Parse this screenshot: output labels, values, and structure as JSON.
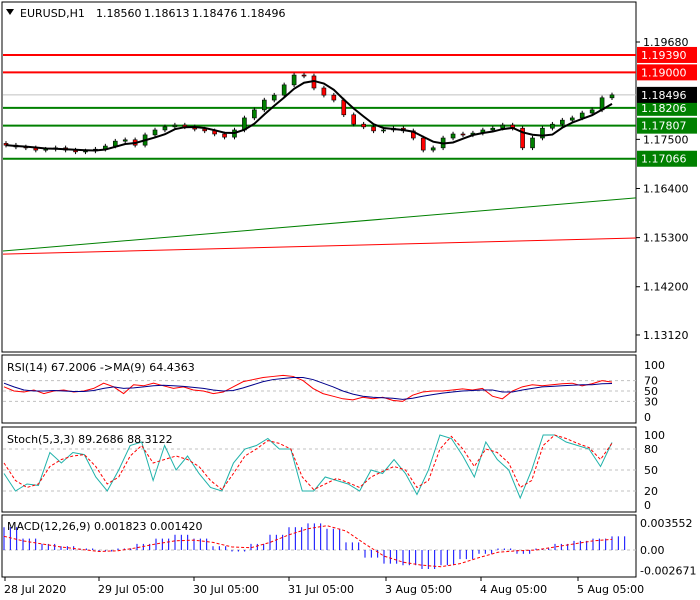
{
  "header": {
    "symbol": "EURUSD,H1",
    "open": "1.18560",
    "high": "1.18613",
    "low": "1.18476",
    "close": "1.18496"
  },
  "colors": {
    "bull": "#008000",
    "bear": "#ff0000",
    "resistance": "#ff0000",
    "support": "#008000",
    "current": "#000000",
    "ma": "#000000",
    "rsi": "#ff0000",
    "rsi_ma": "#00008b",
    "stoch_main": "#20b2aa",
    "stoch_signal": "#ff0000",
    "macd_hist": "#0000ff",
    "macd_signal": "#ff0000"
  },
  "chart_data": [
    {
      "type": "candlestick",
      "title": "EURUSD,H1",
      "price_axis_ticks": [
        "1.19680",
        "1.17500",
        "1.16400",
        "1.15300",
        "1.14200",
        "1.13120"
      ],
      "ylim": [
        1.1285,
        1.201
      ],
      "time_labels": [
        "28 Jul 2020",
        "29 Jul 05:00",
        "30 Jul 05:00",
        "31 Jul 05:00",
        "3 Aug 05:00",
        "4 Aug 05:00",
        "5 Aug 05:00"
      ],
      "closes": [
        1.1737,
        1.1733,
        1.1731,
        1.1726,
        1.1728,
        1.1731,
        1.1726,
        1.1722,
        1.1724,
        1.1728,
        1.1735,
        1.1746,
        1.1749,
        1.1737,
        1.176,
        1.1771,
        1.1778,
        1.1782,
        1.1778,
        1.1773,
        1.1769,
        1.1762,
        1.1755,
        1.1771,
        1.1798,
        1.1816,
        1.1838,
        1.1849,
        1.1872,
        1.1894,
        1.1892,
        1.1865,
        1.1849,
        1.1838,
        1.1805,
        1.1784,
        1.1778,
        1.1769,
        1.1771,
        1.1775,
        1.1769,
        1.1753,
        1.1726,
        1.1731,
        1.1753,
        1.1762,
        1.176,
        1.1764,
        1.1771,
        1.1775,
        1.1782,
        1.1775,
        1.1731,
        1.1753,
        1.1775,
        1.1784,
        1.1793,
        1.1798,
        1.1809,
        1.1816,
        1.1843,
        1.18496
      ],
      "levels": [
        {
          "price": "1.19390",
          "kind": "resistance"
        },
        {
          "price": "1.19000",
          "kind": "resistance"
        },
        {
          "price": "1.18206",
          "kind": "support"
        },
        {
          "price": "1.17807",
          "kind": "support"
        },
        {
          "price": "1.17066",
          "kind": "support"
        }
      ],
      "current_price": "1.18496",
      "trendlines": [
        {
          "kind": "support",
          "start_price": 1.15,
          "end_price": 1.1619
        },
        {
          "kind": "resistance",
          "start_price": 1.1493,
          "end_price": 1.1529
        }
      ]
    },
    {
      "type": "line",
      "label": "RSI(14) 67.2006  ->MA(9) 64.4363",
      "ticks": [
        "100",
        "70",
        "50",
        "30",
        "0"
      ],
      "ylim": [
        0,
        100
      ],
      "rsi": [
        58,
        50,
        48,
        52,
        45,
        50,
        52,
        48,
        50,
        55,
        65,
        58,
        45,
        62,
        60,
        65,
        60,
        55,
        58,
        52,
        50,
        45,
        48,
        58,
        68,
        72,
        76,
        78,
        80,
        78,
        70,
        55,
        45,
        40,
        35,
        33,
        38,
        35,
        38,
        32,
        30,
        42,
        48,
        50,
        50,
        52,
        54,
        52,
        55,
        40,
        35,
        50,
        58,
        62,
        60,
        62,
        64,
        65,
        60,
        64,
        70,
        67
      ],
      "rsi_ma": [
        65,
        58,
        52,
        50,
        50,
        51,
        50,
        49,
        49,
        51,
        55,
        58,
        55,
        56,
        58,
        60,
        61,
        60,
        59,
        57,
        55,
        52,
        50,
        51,
        56,
        62,
        68,
        72,
        74,
        76,
        76,
        72,
        65,
        58,
        50,
        44,
        40,
        38,
        37,
        36,
        34,
        36,
        40,
        43,
        46,
        48,
        50,
        51,
        52,
        52,
        48,
        48,
        52,
        55,
        58,
        59,
        60,
        61,
        62,
        62,
        64,
        64.4
      ]
    },
    {
      "type": "line",
      "label": "Stoch(5,3,3) 89.2686 88.3122",
      "ticks": [
        "100",
        "80",
        "50",
        "20",
        "0"
      ],
      "ylim": [
        0,
        100
      ],
      "main": [
        45,
        20,
        30,
        28,
        75,
        60,
        75,
        72,
        40,
        20,
        50,
        85,
        90,
        35,
        85,
        50,
        70,
        45,
        25,
        20,
        60,
        80,
        85,
        95,
        80,
        80,
        20,
        20,
        40,
        35,
        30,
        20,
        50,
        45,
        65,
        45,
        15,
        50,
        100,
        95,
        70,
        40,
        90,
        65,
        50,
        10,
        50,
        100,
        100,
        90,
        85,
        80,
        55,
        89.3
      ],
      "signal": [
        60,
        35,
        25,
        30,
        55,
        65,
        70,
        72,
        55,
        30,
        40,
        70,
        85,
        60,
        65,
        70,
        65,
        55,
        35,
        22,
        45,
        70,
        80,
        92,
        88,
        80,
        40,
        22,
        30,
        38,
        32,
        25,
        40,
        48,
        55,
        50,
        25,
        35,
        80,
        98,
        80,
        55,
        80,
        75,
        60,
        25,
        35,
        85,
        100,
        95,
        88,
        82,
        65,
        88.3
      ]
    },
    {
      "type": "bar",
      "label": "MACD(12,26,9) 0.001823 0.001420",
      "ticks": [
        "0.003552",
        "0.00",
        "-0.002671"
      ],
      "ylim": [
        -0.002671,
        0.003552
      ],
      "histogram": [
        0.003,
        0.0015,
        0.0008,
        0.0005,
        0.0002,
        -0.0002,
        0.0002,
        0.0008,
        0.0015,
        0.002,
        0.0015,
        0.0005,
        -0.0002,
        0.0008,
        0.002,
        0.003,
        0.0035,
        0.0028,
        0.001,
        -0.001,
        -0.0018,
        -0.002,
        -0.0025,
        -0.002,
        -0.0012,
        -0.0005,
        0.0002,
        -0.0005,
        0.0002,
        0.0008,
        0.0012,
        0.0015,
        0.0018
      ],
      "signal": [
        0.0018,
        0.0012,
        0.0008,
        0.0004,
        0.0001,
        -0.0002,
        -0.0001,
        0.0003,
        0.0008,
        0.0012,
        0.0013,
        0.001,
        0.0004,
        0.0003,
        0.001,
        0.002,
        0.0028,
        0.0032,
        0.0025,
        0.0008,
        -0.0008,
        -0.0016,
        -0.002,
        -0.0022,
        -0.0018,
        -0.001,
        -0.0003,
        -0.0001,
        0.0,
        0.0004,
        0.0008,
        0.0012,
        0.0014
      ]
    }
  ]
}
